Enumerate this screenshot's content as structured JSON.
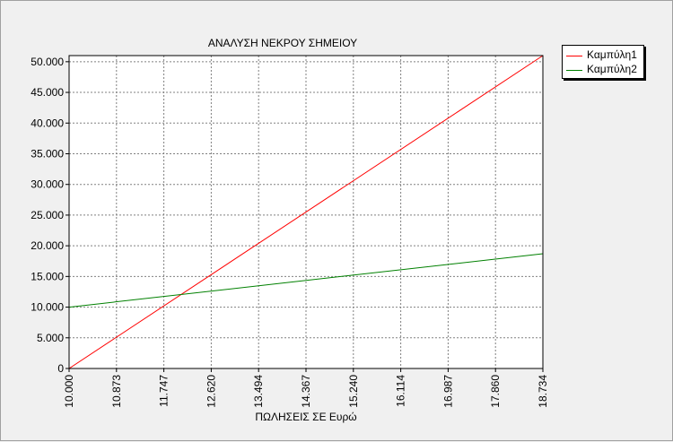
{
  "chart_data": {
    "type": "line",
    "title": "ΑΝΑΛΥΣΗ ΝΕΚΡΟΥ ΣΗΜΕΙΟΥ",
    "xlabel": "ΠΩΛΗΣΕΙΣ ΣΕ Ευρώ",
    "ylabel": "",
    "xlim": [
      10.0,
      18.734
    ],
    "ylim": [
      0,
      51000
    ],
    "x_ticks": [
      "10.000",
      "10.873",
      "11.747",
      "12.620",
      "13.494",
      "14.367",
      "15.240",
      "16.114",
      "16.987",
      "17.860",
      "18.734"
    ],
    "y_ticks": [
      "0",
      "5.000",
      "10.000",
      "15.000",
      "20.000",
      "25.000",
      "30.000",
      "35.000",
      "40.000",
      "45.000",
      "50.000"
    ],
    "y_tick_values": [
      0,
      5000,
      10000,
      15000,
      20000,
      25000,
      30000,
      35000,
      40000,
      45000,
      50000
    ],
    "grid": true,
    "legend": "top-right outside",
    "series": [
      {
        "name": "Καμπύλη1",
        "color": "#ff0000",
        "x": [
          10.0,
          18.734
        ],
        "y": [
          0,
          51000
        ]
      },
      {
        "name": "Καμπύλη2",
        "color": "#008000",
        "x": [
          10.0,
          18.734
        ],
        "y": [
          10000,
          18700
        ]
      }
    ]
  }
}
